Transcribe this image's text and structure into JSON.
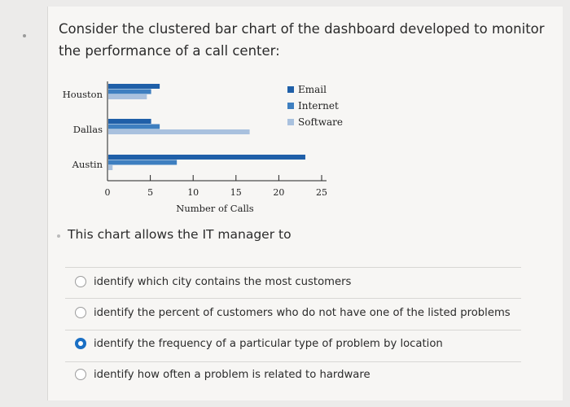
{
  "question": "Consider the clustered bar chart of the dashboard developed to monitor the performance of a call center:",
  "stem": "This chart allows the IT manager to",
  "options": [
    {
      "label": "identify which city contains the most customers",
      "selected": false
    },
    {
      "label": "identify the percent of customers who do not have one of the listed problems",
      "selected": false
    },
    {
      "label": "identify the frequency of a particular type of problem by location",
      "selected": true
    },
    {
      "label": "identify how often a problem is related to hardware",
      "selected": false
    }
  ],
  "chart_data": {
    "type": "bar",
    "orientation": "horizontal",
    "categories": [
      "Houston",
      "Dallas",
      "Austin"
    ],
    "series": [
      {
        "name": "Email",
        "color": "#1f5fa8",
        "values": [
          6,
          5,
          23
        ]
      },
      {
        "name": "Internet",
        "color": "#3e7fc0",
        "values": [
          5,
          6,
          8
        ]
      },
      {
        "name": "Software",
        "color": "#a9c1de",
        "values": [
          4.5,
          16.5,
          0.5
        ]
      }
    ],
    "xlabel": "Number of Calls",
    "ylabel": "",
    "xlim": [
      0,
      25
    ],
    "xticks": [
      "0",
      "5",
      "10",
      "15",
      "20",
      "25"
    ],
    "legend_position": "right",
    "grid": false
  }
}
